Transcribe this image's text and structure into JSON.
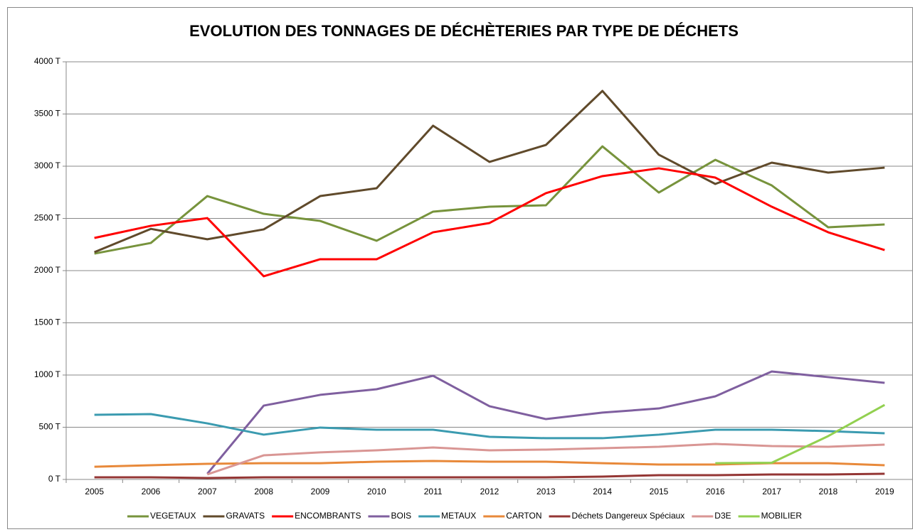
{
  "chart_data": {
    "type": "line",
    "title": "EVOLUTION DES TONNAGES DE DÉCHÈTERIES PAR TYPE DE DÉCHETS",
    "categories": [
      "2005",
      "2006",
      "2007",
      "2008",
      "2009",
      "2010",
      "2011",
      "2012",
      "2013",
      "2014",
      "2015",
      "2016",
      "2017",
      "2018",
      "2019"
    ],
    "ylim": [
      0,
      4000
    ],
    "yticks": [
      {
        "value": 0,
        "label": "0 T"
      },
      {
        "value": 500,
        "label": "500 T"
      },
      {
        "value": 1000,
        "label": "1000 T"
      },
      {
        "value": 1500,
        "label": "1500 T"
      },
      {
        "value": 2000,
        "label": "2000 T"
      },
      {
        "value": 2500,
        "label": "2500 T"
      },
      {
        "value": 3000,
        "label": "3000 T"
      },
      {
        "value": 3500,
        "label": "3500 T"
      },
      {
        "value": 4000,
        "label": "4000 T"
      }
    ],
    "grid": true,
    "legend": "bottom",
    "series": [
      {
        "name": "VEGETAUX",
        "color": "#77933c",
        "values": [
          2163,
          2265,
          2714,
          2544,
          2476,
          2286,
          2565,
          2612,
          2626,
          3190,
          2748,
          3061,
          2816,
          2415,
          2442
        ]
      },
      {
        "name": "GRAVATS",
        "color": "#604a2b",
        "values": [
          2177,
          2400,
          2300,
          2395,
          2714,
          2789,
          3388,
          3041,
          3204,
          3721,
          3110,
          2830,
          3034,
          2939,
          2986
        ]
      },
      {
        "name": "ENCOMBRANTS",
        "color": "#ff0000",
        "values": [
          2313,
          2429,
          2503,
          1946,
          2109,
          2109,
          2367,
          2456,
          2742,
          2905,
          2980,
          2891,
          2612,
          2367,
          2197
        ]
      },
      {
        "name": "BOIS",
        "color": "#7f5f9f",
        "values": [
          null,
          null,
          54,
          707,
          810,
          864,
          993,
          701,
          578,
          640,
          680,
          796,
          1034,
          980,
          925
        ]
      },
      {
        "name": "METAUX",
        "color": "#3b9bb0",
        "values": [
          619,
          626,
          537,
          429,
          497,
          476,
          476,
          408,
          395,
          395,
          429,
          476,
          476,
          463,
          442
        ]
      },
      {
        "name": "CARTON",
        "color": "#e8893a",
        "values": [
          122,
          136,
          150,
          156,
          156,
          170,
          177,
          170,
          170,
          156,
          143,
          143,
          156,
          156,
          136
        ]
      },
      {
        "name": "Déchets Dangereux Spéciaux",
        "color": "#943634",
        "values": [
          20,
          20,
          14,
          20,
          20,
          20,
          20,
          20,
          20,
          27,
          41,
          41,
          48,
          48,
          54
        ]
      },
      {
        "name": "D3E",
        "color": "#d99694",
        "values": [
          null,
          null,
          48,
          231,
          259,
          279,
          306,
          279,
          286,
          299,
          313,
          340,
          320,
          313,
          333
        ]
      },
      {
        "name": "MOBILIER",
        "color": "#92d050",
        "values": [
          null,
          null,
          null,
          null,
          null,
          null,
          null,
          null,
          null,
          null,
          null,
          156,
          160,
          415,
          714
        ]
      }
    ]
  }
}
